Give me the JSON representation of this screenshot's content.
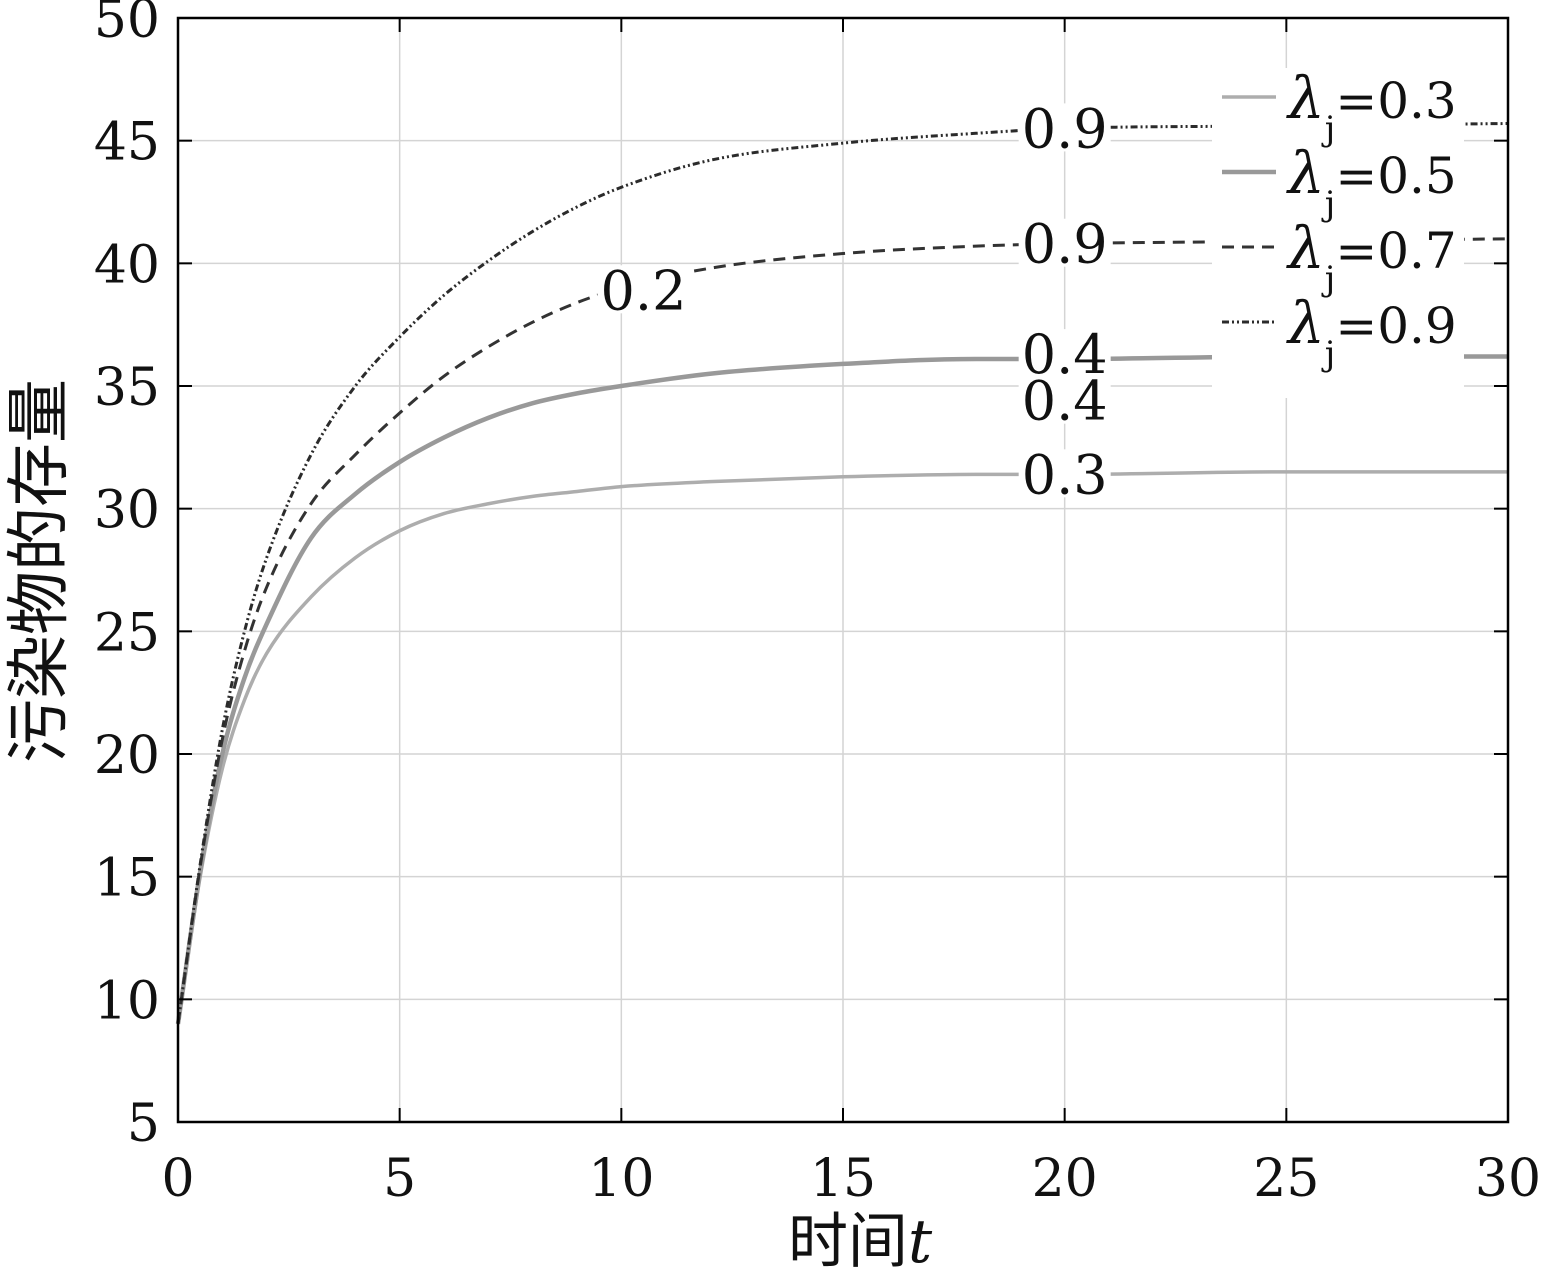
{
  "chart_data": {
    "type": "line",
    "xlabel": {
      "text": "时间",
      "variable": "t"
    },
    "ylabel": "污染物的存量",
    "xlim": [
      0,
      30
    ],
    "ylim": [
      5,
      50
    ],
    "xticks": [
      0,
      5,
      10,
      15,
      20,
      25,
      30
    ],
    "yticks": [
      5,
      10,
      15,
      20,
      25,
      30,
      35,
      40,
      45,
      50
    ],
    "grid": true,
    "legend_position": "top-right",
    "x": [
      0,
      0.5,
      1,
      1.5,
      2,
      3,
      4,
      5,
      6,
      7,
      8,
      9,
      10,
      12,
      15,
      18,
      20,
      25,
      30
    ],
    "series": [
      {
        "legend_label": {
          "symbol": "λ",
          "subscript": "j",
          "text": "=0.3"
        },
        "color": "#adadad",
        "line_style": "solid",
        "values": [
          9,
          15.0,
          19.4,
          22.2,
          24.1,
          26.4,
          28.0,
          29.1,
          29.8,
          30.2,
          30.5,
          30.7,
          30.9,
          31.1,
          31.3,
          31.4,
          31.4,
          31.5,
          31.5
        ]
      },
      {
        "legend_label": {
          "symbol": "λ",
          "subscript": "j",
          "text": "=0.5"
        },
        "color": "#999999",
        "line_style": "solid",
        "values": [
          9,
          15.2,
          20.0,
          23.1,
          25.3,
          28.8,
          30.6,
          31.9,
          32.9,
          33.7,
          34.3,
          34.7,
          35.0,
          35.5,
          35.9,
          36.1,
          36.1,
          36.2,
          36.2
        ]
      },
      {
        "legend_label": {
          "symbol": "λ",
          "subscript": "j",
          "text": "=0.7"
        },
        "color": "#333333",
        "line_style": "dashed",
        "values": [
          9,
          15.4,
          20.6,
          24.2,
          26.8,
          30.2,
          32.2,
          33.9,
          35.4,
          36.6,
          37.6,
          38.4,
          39.0,
          39.8,
          40.4,
          40.7,
          40.8,
          40.9,
          41.0
        ]
      },
      {
        "legend_label": {
          "symbol": "λ",
          "subscript": "j",
          "text": "=0.9"
        },
        "color": "#2b2b2b",
        "line_style": "dash-dot-dot",
        "values": [
          9,
          15.5,
          21.0,
          25.0,
          28.0,
          32.2,
          35.0,
          37.0,
          38.7,
          40.1,
          41.3,
          42.3,
          43.1,
          44.2,
          44.9,
          45.3,
          45.5,
          45.6,
          45.7
        ]
      }
    ],
    "annotations": [
      {
        "text": "0.9",
        "x": 20,
        "y": 45.5
      },
      {
        "text": "0.9",
        "x": 20,
        "y": 40.8
      },
      {
        "text": "0.2",
        "x": 10.5,
        "y": 38.9
      },
      {
        "text": "0.4",
        "x": 20,
        "y": 36.3
      },
      {
        "text": "0.4",
        "x": 20,
        "y": 34.4
      },
      {
        "text": "0.3",
        "x": 20,
        "y": 31.4
      }
    ]
  }
}
